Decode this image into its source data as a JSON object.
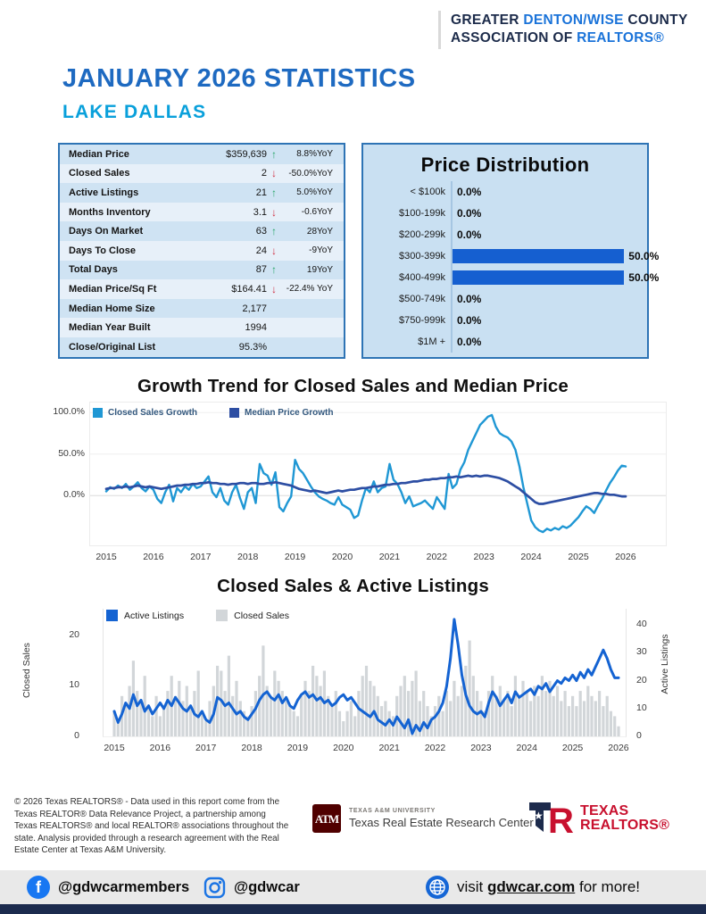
{
  "header": {
    "l1a": "GREATER ",
    "l1b": "DENTON/WISE",
    "l1c": " COUNTY",
    "l2a": "ASSOCIATION OF ",
    "l2b": "REALTORS®"
  },
  "title": "JANUARY 2026 STATISTICS",
  "subtitle": "LAKE DALLAS",
  "colors": {
    "accent_blue": "#1a73d9",
    "navy": "#1c2b4a",
    "title_blue": "#1e6ac1",
    "subtitle_cyan": "#09a0db",
    "panel_border": "#2e74b5",
    "panel_bg": "#c9e0f2",
    "up_green": "#27a567",
    "down_red": "#cf2e40"
  },
  "stats_table": {
    "rows": [
      {
        "label": "Median Price",
        "value": "$359,639",
        "arrow": "↑",
        "arrow_class": "st-arrow up",
        "yoy": "8.8%YoY"
      },
      {
        "label": "Closed Sales",
        "value": "2",
        "arrow": "↓",
        "arrow_class": "st-arrow down",
        "yoy": "-50.0%YoY"
      },
      {
        "label": "Active Listings",
        "value": "21",
        "arrow": "↑",
        "arrow_class": "st-arrow up",
        "yoy": "5.0%YoY"
      },
      {
        "label": "Months Inventory",
        "value": "3.1",
        "arrow": "↓",
        "arrow_class": "st-arrow down",
        "yoy": "-0.6YoY"
      },
      {
        "label": "Days On Market",
        "value": "63",
        "arrow": "↑",
        "arrow_class": "st-arrow up",
        "yoy": "28YoY"
      },
      {
        "label": "Days To Close",
        "value": "24",
        "arrow": "↓",
        "arrow_class": "st-arrow down",
        "yoy": "-9YoY"
      },
      {
        "label": "Total Days",
        "value": "87",
        "arrow": "↑",
        "arrow_class": "st-arrow up",
        "yoy": "19YoY"
      },
      {
        "label": "Median Price/Sq Ft",
        "value": "$164.41",
        "arrow": "↓",
        "arrow_class": "st-arrow down",
        "yoy": "-22.4% YoY"
      },
      {
        "label": "Median Home Size",
        "value": "2,177",
        "arrow": "",
        "arrow_class": "st-arrow",
        "yoy": ""
      },
      {
        "label": "Median Year Built",
        "value": "1994",
        "arrow": "",
        "arrow_class": "st-arrow",
        "yoy": ""
      },
      {
        "label": "Close/Original List",
        "value": "95.3%",
        "arrow": "",
        "arrow_class": "st-arrow",
        "yoy": ""
      }
    ]
  },
  "chart_data": [
    {
      "type": "line",
      "title": "Growth Trend for Closed Sales and Median Price",
      "x_labels": [
        "2015",
        "2016",
        "2017",
        "2018",
        "2019",
        "2020",
        "2021",
        "2022",
        "2023",
        "2024",
        "2025",
        "2026"
      ],
      "ylim": [
        -60,
        112
      ],
      "grid": true,
      "legend_position": "top-left",
      "y_ticks": [
        {
          "value": 100,
          "label": "100.0%"
        },
        {
          "value": 50,
          "label": "50.0%"
        },
        {
          "value": 0,
          "label": "0.0%"
        }
      ],
      "series": [
        {
          "name": "Closed Sales Growth",
          "color": "#1f97d4",
          "values": [
            5,
            10,
            8,
            12,
            9,
            14,
            7,
            11,
            16,
            9,
            5,
            11,
            7,
            -4,
            -9,
            4,
            13,
            -7,
            9,
            4,
            11,
            7,
            14,
            9,
            11,
            17,
            23,
            4,
            -2,
            9,
            -6,
            -11,
            4,
            13,
            -3,
            -16,
            4,
            9,
            -9,
            38,
            27,
            24,
            13,
            28,
            -14,
            -19,
            -9,
            -1,
            43,
            32,
            27,
            19,
            11,
            4,
            -1,
            -4,
            -6,
            -9,
            -11,
            -2,
            -11,
            -14,
            -17,
            -27,
            -24,
            -6,
            9,
            4,
            17,
            4,
            9,
            11,
            38,
            19,
            14,
            4,
            -9,
            -1,
            -13,
            -11,
            -9,
            -6,
            -11,
            -16,
            -2,
            -9,
            -16,
            26,
            9,
            14,
            31,
            40,
            55,
            65,
            75,
            85,
            90,
            95,
            97,
            83,
            75,
            72,
            70,
            65,
            55,
            35,
            10,
            -10,
            -30,
            -38,
            -42,
            -44,
            -40,
            -42,
            -39,
            -41,
            -37,
            -39,
            -36,
            -31,
            -26,
            -19,
            -13,
            -16,
            -21,
            -12,
            -4,
            6,
            15,
            22,
            30,
            36,
            35
          ]
        },
        {
          "name": "Median Price Growth",
          "color": "#2d4ea3",
          "values": [
            8,
            9,
            9,
            10,
            10,
            11,
            10,
            11,
            12,
            11,
            10,
            11,
            10,
            9,
            8,
            9,
            10,
            11,
            12,
            12,
            13,
            13,
            14,
            14,
            15,
            15,
            16,
            15,
            15,
            14,
            14,
            13,
            14,
            14,
            15,
            15,
            14,
            15,
            15,
            14,
            14,
            15,
            15,
            16,
            15,
            14,
            13,
            12,
            10,
            8,
            7,
            6,
            5,
            6,
            5,
            4,
            3,
            4,
            5,
            6,
            5,
            6,
            7,
            7,
            8,
            9,
            9,
            10,
            11,
            11,
            12,
            13,
            13,
            14,
            14,
            15,
            15,
            16,
            17,
            17,
            18,
            19,
            19,
            20,
            20,
            21,
            21,
            22,
            22,
            23,
            22,
            23,
            24,
            23,
            24,
            23,
            24,
            24,
            23,
            22,
            21,
            19,
            17,
            14,
            11,
            8,
            4,
            0,
            -4,
            -8,
            -10,
            -10,
            -9,
            -8,
            -7,
            -6,
            -5,
            -4,
            -3,
            -2,
            -1,
            0,
            1,
            2,
            3,
            3,
            2,
            2,
            1,
            1,
            0,
            -1,
            -1
          ]
        }
      ]
    },
    {
      "type": "bar+line",
      "title": "Closed Sales & Active Listings",
      "x_labels": [
        "2015",
        "2016",
        "2017",
        "2018",
        "2019",
        "2020",
        "2021",
        "2022",
        "2023",
        "2024",
        "2025",
        "2026"
      ],
      "legend_position": "top-left",
      "bar_series": {
        "name": "Closed Sales",
        "color": "#d2d6d9",
        "axis": "left",
        "axis_label": "Closed Sales",
        "ticks": [
          0,
          10,
          20
        ],
        "ylim": [
          0,
          25.3
        ],
        "values": [
          5,
          3,
          8,
          6,
          10,
          15,
          9,
          7,
          12,
          6,
          4,
          8,
          4,
          6,
          9,
          12,
          8,
          11,
          7,
          10,
          6,
          9,
          13,
          5,
          3,
          7,
          10,
          14,
          13,
          9,
          16,
          8,
          11,
          7,
          5,
          4,
          6,
          9,
          12,
          18,
          10,
          8,
          13,
          11,
          9,
          7,
          6,
          5,
          4,
          8,
          11,
          9,
          14,
          12,
          10,
          13,
          8,
          6,
          9,
          5,
          3,
          5,
          7,
          4,
          9,
          12,
          14,
          11,
          10,
          8,
          6,
          7,
          5,
          4,
          8,
          10,
          12,
          9,
          11,
          13,
          7,
          9,
          6,
          4,
          6,
          8,
          5,
          9,
          7,
          11,
          8,
          10,
          14,
          19,
          12,
          9,
          7,
          5,
          9,
          12,
          8,
          10,
          7,
          9,
          6,
          12,
          8,
          11,
          9,
          7,
          10,
          8,
          12,
          9,
          11,
          8,
          10,
          7,
          9,
          6,
          8,
          6,
          9,
          7,
          10,
          8,
          7,
          9,
          6,
          8,
          5,
          4,
          2
        ]
      },
      "line_series": {
        "name": "Active Listings",
        "color": "#1463d2",
        "axis": "right",
        "axis_label": "Active Listings",
        "ticks": [
          0,
          10,
          20,
          30,
          40
        ],
        "ylim": [
          0,
          45.8
        ],
        "values": [
          9,
          5,
          8,
          12,
          10,
          15,
          11,
          13,
          9,
          11,
          8,
          10,
          12,
          10,
          13,
          11,
          14,
          12,
          10,
          9,
          11,
          8,
          7,
          9,
          6,
          5,
          8,
          14,
          13,
          11,
          12,
          10,
          8,
          9,
          7,
          6,
          8,
          10,
          13,
          15,
          16,
          14,
          13,
          15,
          12,
          14,
          11,
          10,
          13,
          15,
          16,
          14,
          15,
          13,
          14,
          12,
          13,
          11,
          12,
          14,
          15,
          13,
          14,
          12,
          10,
          9,
          8,
          7,
          9,
          6,
          5,
          4,
          6,
          4,
          7,
          5,
          3,
          6,
          1,
          4,
          2,
          5,
          3,
          6,
          7,
          9,
          12,
          18,
          28,
          42,
          33,
          22,
          15,
          11,
          9,
          8,
          9,
          7,
          12,
          16,
          14,
          11,
          13,
          15,
          12,
          16,
          14,
          15,
          16,
          17,
          15,
          18,
          17,
          19,
          16,
          18,
          20,
          19,
          21,
          20,
          22,
          20,
          23,
          21,
          24,
          22,
          25,
          28,
          31,
          28,
          24,
          21,
          21
        ]
      }
    },
    {
      "type": "bar",
      "title": "Price Distribution",
      "categories": [
        "< $100k",
        "$100-199k",
        "$200-299k",
        "$300-399k",
        "$400-499k",
        "$500-749k",
        "$750-999k",
        "$1M +"
      ],
      "values": [
        0,
        0,
        0,
        50,
        50,
        0,
        0,
        0
      ],
      "labels": [
        "0.0%",
        "0.0%",
        "0.0%",
        "50.0%",
        "50.0%",
        "0.0%",
        "0.0%",
        "0.0%"
      ],
      "xmax": 52,
      "bar_color": "#155fd0"
    }
  ],
  "footer": {
    "copyright": "© 2026 Texas REALTORS® - Data used in this report come from the Texas REALTOR® Data Relevance Project, a partnership among Texas REALTORS® and local REALTOR® associations throughout the state. Analysis provided through a research agreement with the Real Estate Center at Texas A&M University.",
    "tamu_monogram": "ATM",
    "tamu_small": "TEXAS A&M UNIVERSITY",
    "tamu_name": "Texas Real Estate Research Center",
    "tr_line1": "TEXAS",
    "tr_line2": "REALTORS®"
  },
  "social": {
    "facebook_handle": "@gdwcarmembers",
    "instagram_handle": "@gdwcar",
    "visit_prefix": "visit ",
    "visit_link": "gdwcar.com",
    "visit_suffix": " for more!"
  }
}
